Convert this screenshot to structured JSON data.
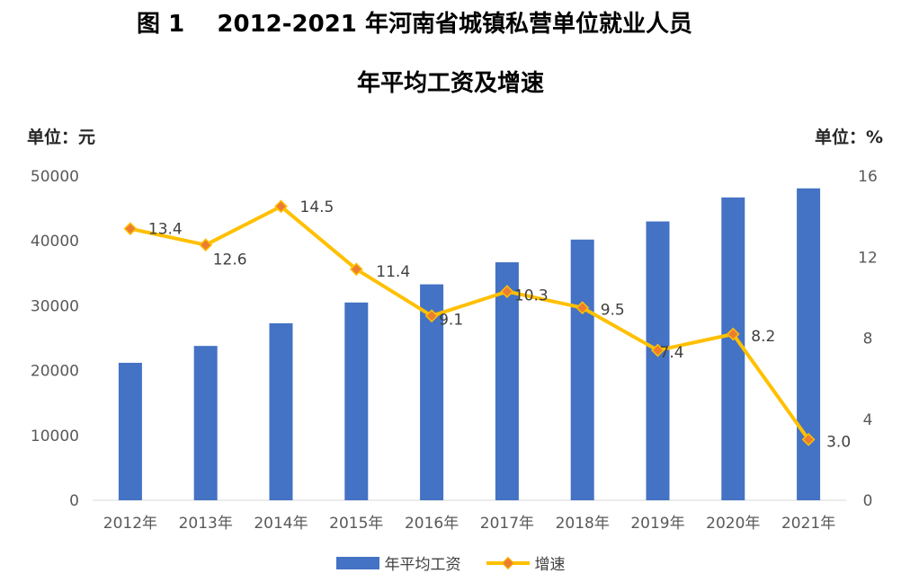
{
  "title_line1": "图 1    2012-2021 年河南省城镇私营单位就业人员",
  "title_line2": "年平均工资及增速",
  "unit_left": "单位：元",
  "unit_right": "单位：%",
  "colors": {
    "bar": "#4472C4",
    "line": "#FFC000",
    "marker": "#ED7D31"
  },
  "chart_data": {
    "type": "bar+line",
    "categories": [
      "2012年",
      "2013年",
      "2014年",
      "2015年",
      "2016年",
      "2017年",
      "2018年",
      "2019年",
      "2020年",
      "2021年"
    ],
    "left_axis": {
      "ylim": [
        0,
        50000
      ],
      "ticks": [
        "0",
        "10000",
        "20000",
        "30000",
        "40000",
        "50000"
      ]
    },
    "right_axis": {
      "ylim": [
        0,
        16
      ],
      "ticks": [
        "0",
        "4",
        "8",
        "12",
        "16"
      ]
    },
    "series": [
      {
        "name": "年平均工资",
        "type": "bar",
        "axis": "left",
        "values": [
          21200,
          23800,
          27300,
          30500,
          33300,
          36700,
          40200,
          43000,
          46700,
          48100
        ]
      },
      {
        "name": "增速",
        "type": "line",
        "axis": "right",
        "values": [
          13.4,
          12.6,
          14.5,
          11.4,
          9.1,
          10.3,
          9.5,
          7.4,
          8.2,
          3.0
        ],
        "labels": [
          "13.4",
          "12.6",
          "14.5",
          "11.4",
          "9.1",
          "10.3",
          "9.5",
          "7.4",
          "8.2",
          "3.0"
        ]
      }
    ],
    "grid": false,
    "legend_position": "bottom"
  }
}
